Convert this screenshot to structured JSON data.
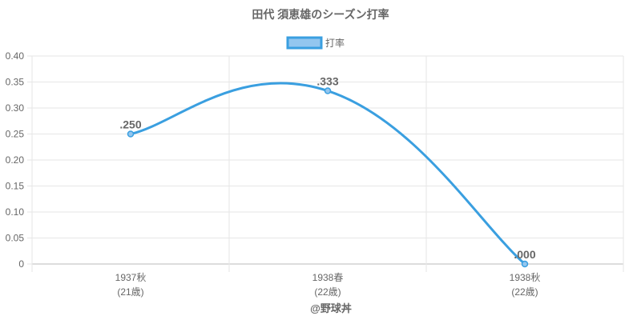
{
  "chart_data": {
    "type": "line",
    "title": "田代 須恵雄のシーズン打率",
    "legend": {
      "position": "top",
      "items": [
        "打率"
      ]
    },
    "categories": [
      [
        "1937秋",
        "(21歳)"
      ],
      [
        "1938春",
        "(22歳)"
      ],
      [
        "1938秋",
        "(22歳)"
      ]
    ],
    "series": [
      {
        "name": "打率",
        "values": [
          0.25,
          0.333,
          0.0
        ],
        "labels": [
          ".250",
          ".333",
          ".000"
        ],
        "color": "#3a9fe0",
        "fill": "#93c6ef"
      }
    ],
    "ylim": [
      0,
      0.4
    ],
    "yticks": [
      0,
      0.05,
      0.1,
      0.15,
      0.2,
      0.25,
      0.3,
      0.35,
      0.4
    ],
    "ytick_labels": [
      "0",
      "0.05",
      "0.10",
      "0.15",
      "0.20",
      "0.25",
      "0.30",
      "0.35",
      "0.40"
    ],
    "grid": true
  },
  "footer": {
    "credit": "@野球丼"
  }
}
